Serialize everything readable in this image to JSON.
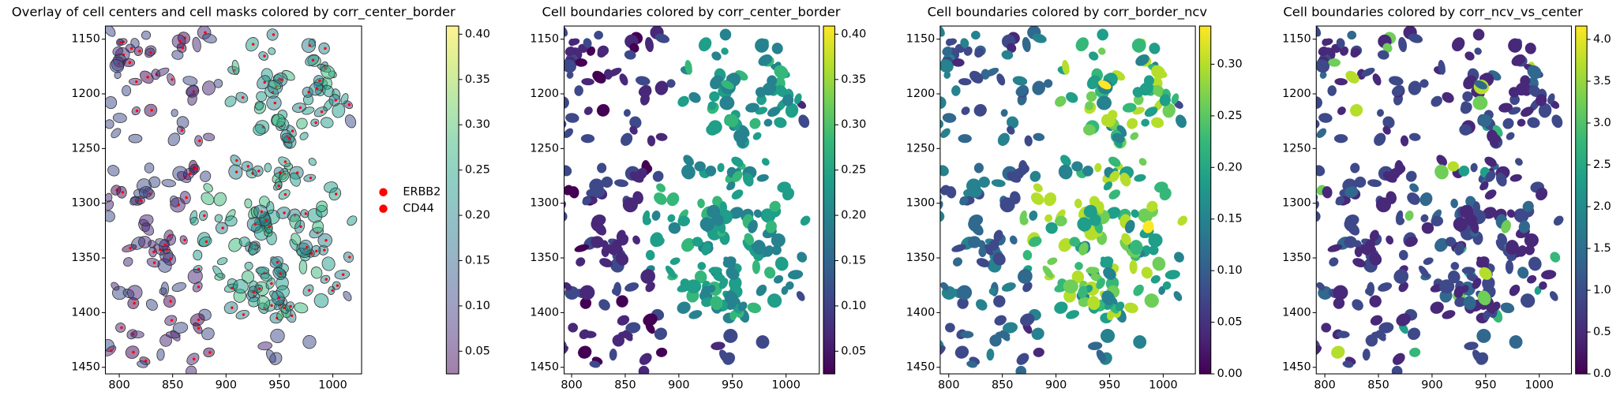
{
  "chart_data": [
    {
      "type": "map",
      "title": "Overlay of cell centers and cell masks colored by corr_center_border",
      "xlim": [
        787,
        1027
      ],
      "ylim": [
        1456,
        1138
      ],
      "xticks": [
        800,
        850,
        900,
        950,
        1000
      ],
      "yticks": [
        1150,
        1200,
        1250,
        1300,
        1350,
        1400,
        1450
      ],
      "colorbar": {
        "lim": [
          0.025,
          0.409
        ],
        "ticks": [
          0.05,
          {
            "value": 0.1,
            "label": "0.10"
          },
          0.15,
          {
            "value": 0.2,
            "label": "0.20"
          },
          0.25,
          {
            "value": 0.3,
            "label": "0.30"
          },
          0.35,
          {
            "value": 0.4,
            "label": "0.40"
          }
        ],
        "alpha": 0.5
      },
      "series": [
        {
          "name": "ERBB2",
          "color": "#ff0000"
        },
        {
          "name": "CD44",
          "color": "#ff0000"
        }
      ]
    },
    {
      "type": "map",
      "title": "Cell boundaries colored by corr_center_border",
      "xlim": [
        793,
        1031
      ],
      "ylim": [
        1456,
        1138
      ],
      "xticks": [
        800,
        850,
        900,
        950,
        1000
      ],
      "yticks": [
        1150,
        1200,
        1250,
        1300,
        1350,
        1400,
        1450
      ],
      "colorbar": {
        "lim": [
          0.025,
          0.409
        ],
        "ticks": [
          0.05,
          {
            "value": 0.1,
            "label": "0.10"
          },
          0.15,
          {
            "value": 0.2,
            "label": "0.20"
          },
          0.25,
          {
            "value": 0.3,
            "label": "0.30"
          },
          0.35,
          {
            "value": 0.4,
            "label": "0.40"
          }
        ]
      }
    },
    {
      "type": "map",
      "title": "Cell boundaries colored by corr_border_ncv",
      "xlim": [
        792,
        1030
      ],
      "ylim": [
        1456,
        1138
      ],
      "xticks": [
        800,
        850,
        900,
        950,
        1000
      ],
      "yticks": [
        1150,
        1200,
        1250,
        1300,
        1350,
        1400,
        1450
      ],
      "colorbar": {
        "lim": [
          0,
          0.337
        ],
        "ticks": [
          {
            "value": 0,
            "label": "0.00"
          },
          0.05,
          {
            "value": 0.1,
            "label": "0.10"
          },
          0.15,
          {
            "value": 0.2,
            "label": "0.20"
          },
          0.25,
          {
            "value": 0.3,
            "label": "0.30"
          }
        ]
      }
    },
    {
      "type": "map",
      "title": "Cell boundaries colored by corr_ncv_vs_center",
      "xlim": [
        792,
        1030
      ],
      "ylim": [
        1456,
        1138
      ],
      "xticks": [
        800,
        850,
        900,
        950,
        1000
      ],
      "yticks": [
        1150,
        1200,
        1250,
        1300,
        1350,
        1400,
        1450
      ],
      "colorbar": {
        "lim": [
          0,
          4.16
        ],
        "ticks": [
          {
            "value": 0,
            "label": "0.0"
          },
          0.5,
          {
            "value": 1,
            "label": "1.0"
          },
          1.5,
          {
            "value": 2,
            "label": "2.0"
          },
          2.5,
          {
            "value": 3,
            "label": "3.0"
          },
          3.5,
          {
            "value": 4,
            "label": "4.0"
          }
        ]
      }
    }
  ]
}
